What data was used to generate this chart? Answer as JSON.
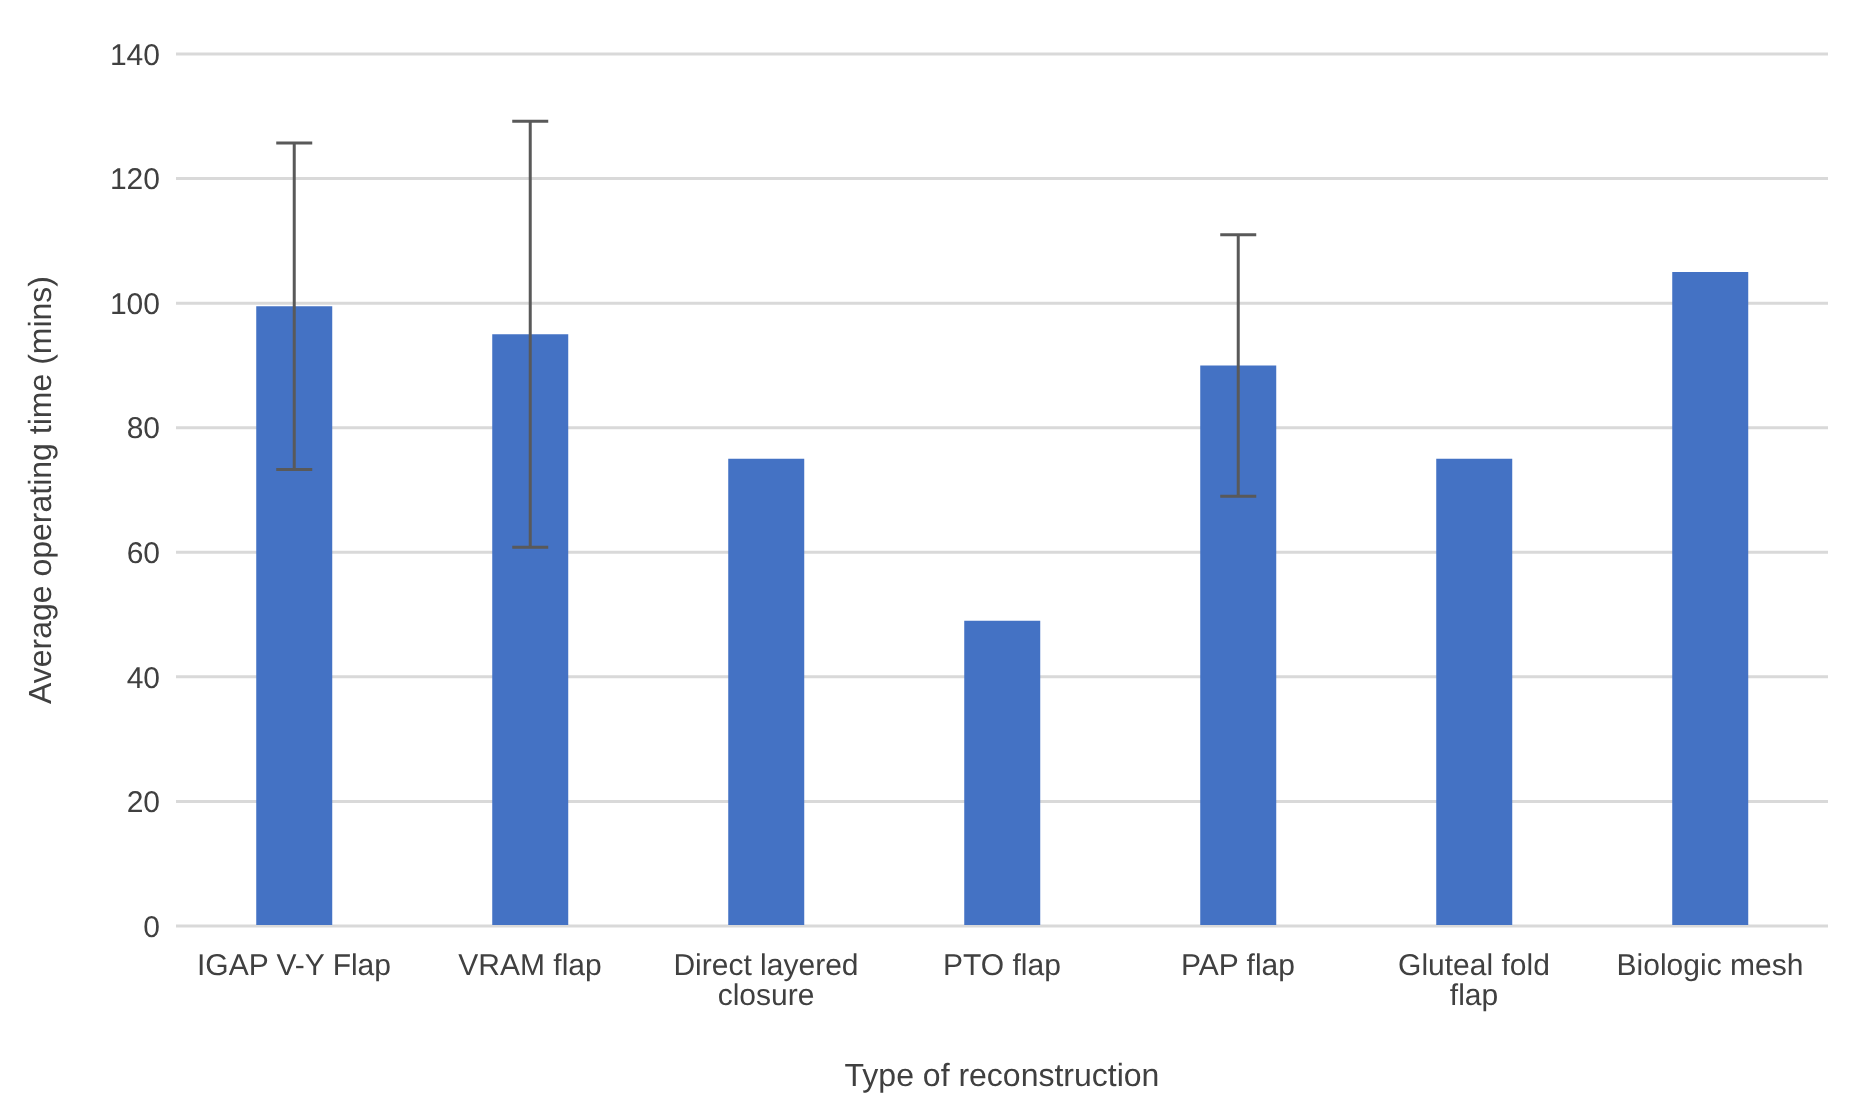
{
  "chart_data": {
    "type": "bar",
    "xlabel": "Type of reconstruction",
    "ylabel": "Average operating time (mins)",
    "categories": [
      "IGAP V-Y Flap",
      "VRAM flap",
      "Direct layered closure",
      "PTO flap",
      "PAP flap",
      "Gluteal fold flap",
      "Biologic mesh"
    ],
    "values": [
      99.5,
      95,
      75,
      49,
      90,
      75,
      105
    ],
    "errors": [
      26.2,
      34.2,
      0,
      0,
      21,
      0,
      0
    ],
    "color": "#4472c4",
    "ylim": [
      0,
      140
    ],
    "yticks": [
      0,
      20,
      40,
      60,
      80,
      100,
      120,
      140
    ],
    "grid": "y"
  }
}
